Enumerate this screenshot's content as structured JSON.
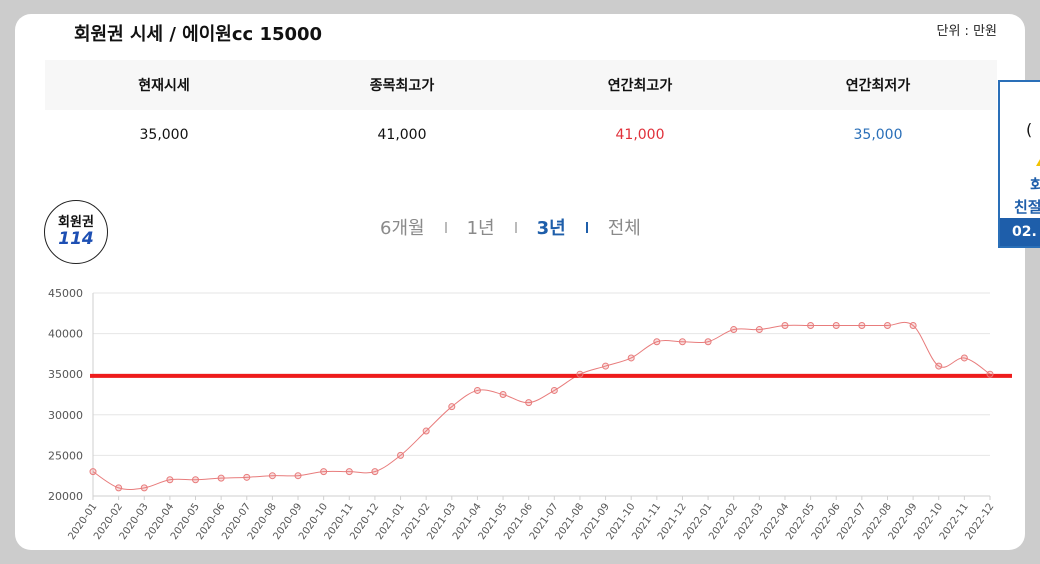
{
  "header": {
    "title": "회원권 시세 / 에이원cc 15000",
    "unit": "단위 : 만원"
  },
  "stats": {
    "headers": [
      "현재시세",
      "종목최고가",
      "연간최고가",
      "연간최저가"
    ],
    "values": [
      "35,000",
      "41,000",
      "41,000",
      "35,000"
    ],
    "colors": {
      "annual_high": "#e0303a",
      "annual_low": "#2a6fb8"
    }
  },
  "logo": {
    "line1": "회원권",
    "line2": "114"
  },
  "tabs": [
    {
      "label": "6개월",
      "active": false
    },
    {
      "label": "1년",
      "active": false
    },
    {
      "label": "3년",
      "active": true
    },
    {
      "label": "전체",
      "active": false
    }
  ],
  "side_banner": {
    "text1": "(",
    "text2": "회",
    "text3": "친절",
    "badge": "02."
  },
  "chart_data": {
    "type": "line",
    "x": [
      "2020-01",
      "2020-02",
      "2020-03",
      "2020-04",
      "2020-05",
      "2020-06",
      "2020-07",
      "2020-08",
      "2020-09",
      "2020-10",
      "2020-11",
      "2020-12",
      "2021-01",
      "2021-02",
      "2021-03",
      "2021-04",
      "2021-05",
      "2021-06",
      "2021-07",
      "2021-08",
      "2021-09",
      "2021-10",
      "2021-11",
      "2021-12",
      "2022-01",
      "2022-02",
      "2022-03",
      "2022-04",
      "2022-05",
      "2022-06",
      "2022-07",
      "2022-08",
      "2022-09",
      "2022-10",
      "2022-11",
      "2022-12"
    ],
    "series": [
      {
        "values": [
          23000,
          21000,
          21000,
          22000,
          22000,
          22200,
          22300,
          22500,
          22500,
          23000,
          23000,
          23000,
          25000,
          28000,
          31000,
          33000,
          32500,
          31500,
          33000,
          35000,
          36000,
          37000,
          39000,
          39000,
          39000,
          40500,
          40500,
          41000,
          41000,
          41000,
          41000,
          41000,
          41000,
          36000,
          37000,
          35000
        ],
        "color": "#e87c7c"
      }
    ],
    "reference_line": {
      "value": 34800,
      "color": "#ee1c1c"
    },
    "yticks": [
      20000,
      25000,
      30000,
      35000,
      40000,
      45000
    ],
    "ylim": [
      20000,
      45000
    ],
    "grid": true
  }
}
